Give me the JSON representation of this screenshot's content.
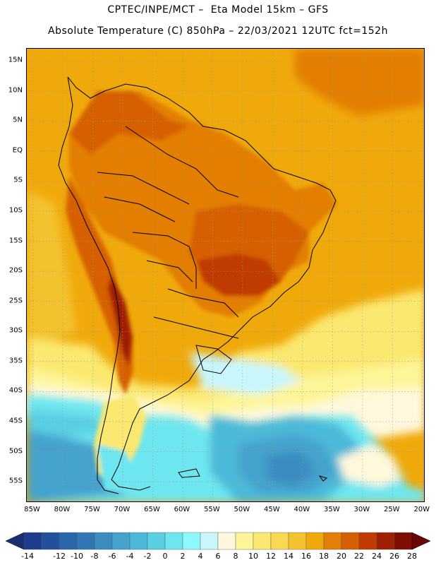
{
  "title": "CPTEC/INPE/MCT –  Eta Model 15km – GFS",
  "subtitle": "Absolute Temperature (C) 850hPa – 22/03/2021 12UTC fct=152h",
  "map": {
    "lon_min": -86,
    "lon_max": -19.5,
    "lat_min": -58.5,
    "lat_max": 17,
    "lat_ticks": [
      {
        "value": 15,
        "label": "15N"
      },
      {
        "value": 10,
        "label": "10N"
      },
      {
        "value": 5,
        "label": "5N"
      },
      {
        "value": 0,
        "label": "EQ"
      },
      {
        "value": -5,
        "label": "5S"
      },
      {
        "value": -10,
        "label": "10S"
      },
      {
        "value": -15,
        "label": "15S"
      },
      {
        "value": -20,
        "label": "20S"
      },
      {
        "value": -25,
        "label": "25S"
      },
      {
        "value": -30,
        "label": "30S"
      },
      {
        "value": -35,
        "label": "35S"
      },
      {
        "value": -40,
        "label": "40S"
      },
      {
        "value": -45,
        "label": "45S"
      },
      {
        "value": -50,
        "label": "50S"
      },
      {
        "value": -55,
        "label": "55S"
      }
    ],
    "lon_ticks": [
      {
        "value": -85,
        "label": "85W"
      },
      {
        "value": -80,
        "label": "80W"
      },
      {
        "value": -75,
        "label": "75W"
      },
      {
        "value": -70,
        "label": "70W"
      },
      {
        "value": -65,
        "label": "65W"
      },
      {
        "value": -60,
        "label": "60W"
      },
      {
        "value": -55,
        "label": "55W"
      },
      {
        "value": -50,
        "label": "50W"
      },
      {
        "value": -45,
        "label": "45W"
      },
      {
        "value": -40,
        "label": "40W"
      },
      {
        "value": -35,
        "label": "35W"
      },
      {
        "value": -30,
        "label": "30W"
      },
      {
        "value": -25,
        "label": "25W"
      },
      {
        "value": -20,
        "label": "20W"
      }
    ]
  },
  "colorbar": {
    "labels": [
      "-14",
      "-12",
      "-10",
      "-8",
      "-6",
      "-4",
      "-2",
      "0",
      "2",
      "4",
      "6",
      "8",
      "10",
      "12",
      "14",
      "16",
      "18",
      "20",
      "22",
      "24",
      "26",
      "28"
    ],
    "colors": [
      "#1e3c8c",
      "#23509c",
      "#2a66ab",
      "#2f78b5",
      "#3a8cc1",
      "#44a2cd",
      "#4cb9d8",
      "#5acfe2",
      "#6ee6f0",
      "#8cfafc",
      "#c8f6fc",
      "#fff8dc",
      "#fdf59a",
      "#fbe870",
      "#f8d855",
      "#f4c22e",
      "#f0a90a",
      "#e37e06",
      "#d65e03",
      "#c03a02",
      "#a01e02",
      "#7e0d02"
    ],
    "low_color": "#1a2f70",
    "high_color": "#6a0505"
  }
}
